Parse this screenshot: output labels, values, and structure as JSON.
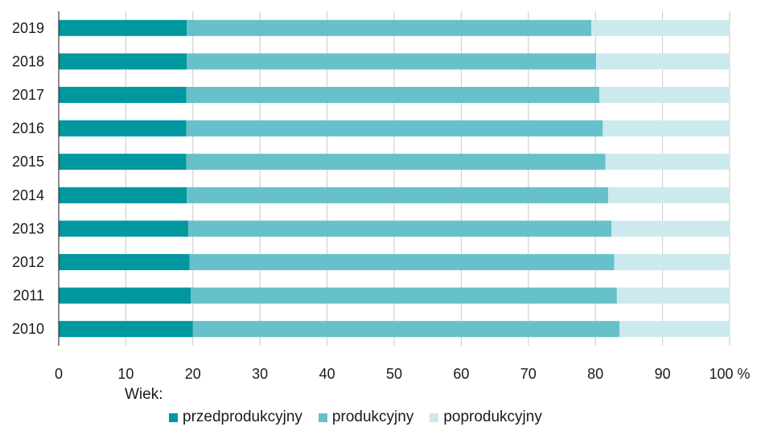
{
  "chart_data": {
    "type": "bar",
    "orientation": "horizontal",
    "stacked": true,
    "categories": [
      "2019",
      "2018",
      "2017",
      "2016",
      "2015",
      "2014",
      "2013",
      "2012",
      "2011",
      "2010"
    ],
    "series": [
      {
        "name": "przedprodukcyjny",
        "color": "#00979F",
        "values": [
          19.1,
          19.1,
          19.0,
          19.0,
          19.0,
          19.1,
          19.3,
          19.5,
          19.7,
          20.0
        ]
      },
      {
        "name": "produkcyjny",
        "color": "#66C1CA",
        "values": [
          60.3,
          61.0,
          61.6,
          62.1,
          62.5,
          62.8,
          63.1,
          63.3,
          63.5,
          63.6
        ]
      },
      {
        "name": "poprodukcyjny",
        "color": "#CCEAED",
        "values": [
          20.6,
          19.9,
          19.4,
          18.9,
          18.5,
          18.1,
          17.6,
          17.2,
          16.8,
          16.4
        ]
      }
    ],
    "x_ticks": [
      "0",
      "10",
      "20",
      "30",
      "40",
      "50",
      "60",
      "70",
      "80",
      "90",
      "100 %"
    ],
    "xlim": [
      0,
      100
    ],
    "grid": "vertical",
    "legend_title": "Wiek:",
    "legend_position": "bottom"
  }
}
